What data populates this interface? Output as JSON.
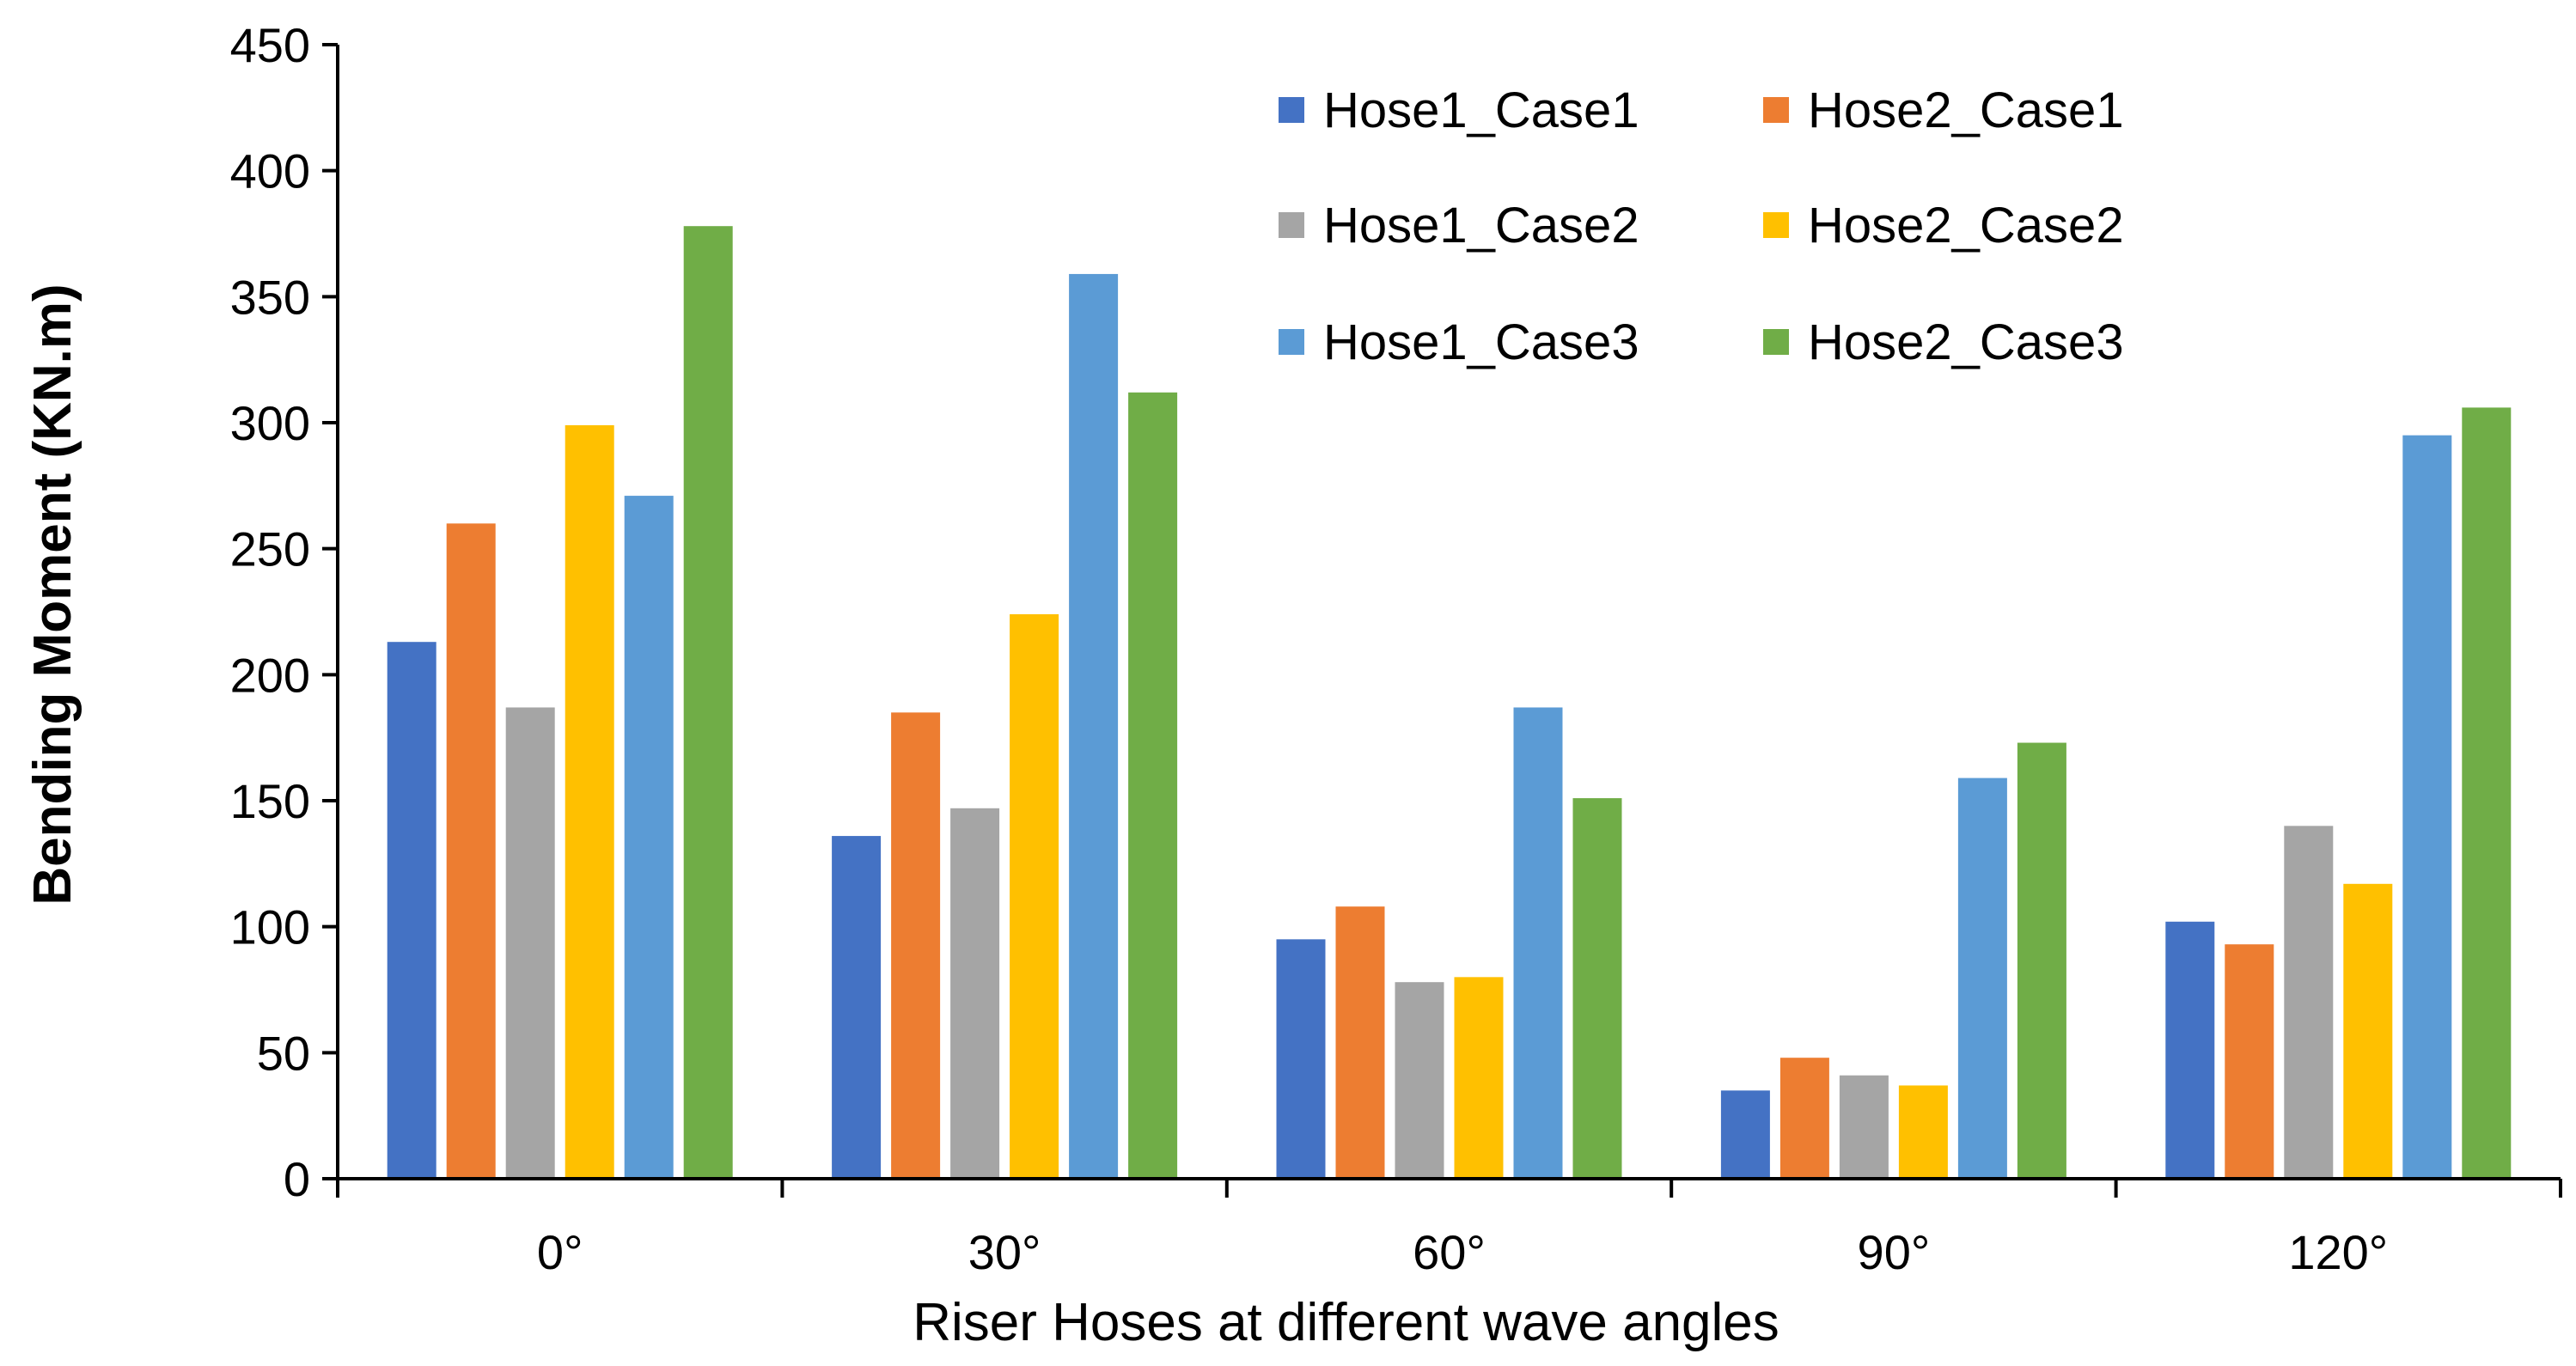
{
  "chart_data": {
    "type": "bar",
    "title": "",
    "xlabel": "Riser Hoses at different wave angles",
    "ylabel": "Bending Moment (KN.m)",
    "ylim": [
      0,
      450
    ],
    "yticks": [
      0,
      50,
      100,
      150,
      200,
      250,
      300,
      350,
      400,
      450
    ],
    "ytick_labels": [
      "0",
      "50",
      "100",
      "150",
      "200",
      "250",
      "300",
      "350",
      "400",
      "450"
    ],
    "categories": [
      "0°",
      "30°",
      "60°",
      "90°",
      "120°"
    ],
    "grid": false,
    "legend_position": "top-right",
    "series": [
      {
        "name": "Hose1_Case1",
        "color": "#4472C4",
        "values": [
          213,
          136,
          95,
          35,
          102
        ]
      },
      {
        "name": "Hose2_Case1",
        "color": "#ED7D31",
        "values": [
          260,
          185,
          108,
          48,
          93
        ]
      },
      {
        "name": "Hose1_Case2",
        "color": "#A5A5A5",
        "values": [
          187,
          147,
          78,
          41,
          140
        ]
      },
      {
        "name": "Hose2_Case2",
        "color": "#FFC000",
        "values": [
          299,
          224,
          80,
          37,
          117
        ]
      },
      {
        "name": "Hose1_Case3",
        "color": "#5B9BD5",
        "values": [
          271,
          359,
          187,
          159,
          295
        ]
      },
      {
        "name": "Hose2_Case3",
        "color": "#70AD47",
        "values": [
          378,
          312,
          151,
          173,
          306
        ]
      }
    ]
  }
}
